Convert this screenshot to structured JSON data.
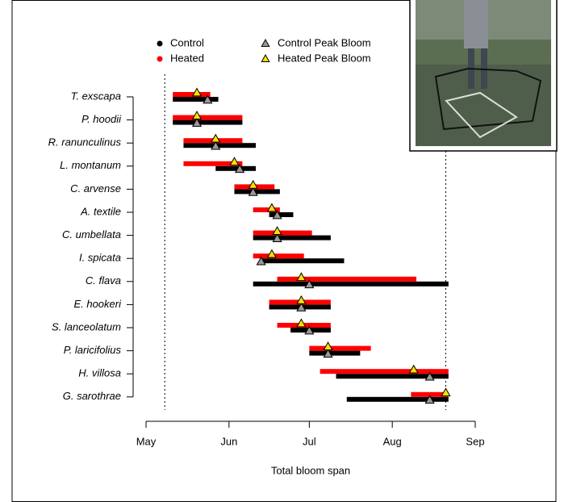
{
  "chart_data": {
    "type": "range_bar",
    "x_label": "Total bloom span",
    "categories": [
      "T. exscapa",
      "P. hoodii",
      "R. ranunculinus",
      "L. montanum",
      "C. arvense",
      "A. textile",
      "C. umbellata",
      "I. spicata",
      "C. flava",
      "E. hookeri",
      "S. lanceolatum",
      "P. laricifolius",
      "H. villosa",
      "G. sarothrae"
    ],
    "series": [
      {
        "name": "Control",
        "color": "#000000",
        "start": [
          10,
          10,
          14,
          26,
          33,
          46,
          40,
          43,
          40,
          46,
          54,
          61,
          71,
          75
        ],
        "end": [
          27,
          36,
          41,
          41,
          50,
          55,
          69,
          74,
          113,
          69,
          69,
          80,
          113,
          113
        ]
      },
      {
        "name": "Heated",
        "color": "#ff0000",
        "start": [
          10,
          10,
          14,
          14,
          33,
          40,
          40,
          40,
          49,
          46,
          49,
          61,
          65,
          99
        ],
        "end": [
          24,
          36,
          36,
          36,
          48,
          50,
          62,
          59,
          101,
          69,
          69,
          84,
          113,
          113
        ]
      }
    ],
    "peaks": [
      {
        "name": "Control Peak Bloom",
        "color": "#999999",
        "values": [
          23,
          19,
          26,
          35,
          40,
          49,
          49,
          43,
          61,
          58,
          61,
          68,
          106,
          106
        ]
      },
      {
        "name": "Heated Peak Bloom",
        "color": "#ffe000",
        "values": [
          19,
          19,
          26,
          33,
          40,
          47,
          49,
          47,
          58,
          58,
          58,
          68,
          100,
          112
        ]
      }
    ],
    "xlim": [
      0,
      123
    ],
    "xticks": [
      {
        "value": 0,
        "label": "May"
      },
      {
        "value": 31,
        "label": "Jun"
      },
      {
        "value": 61,
        "label": "Jul"
      },
      {
        "value": 92,
        "label": "Aug"
      },
      {
        "value": 123,
        "label": "Sep"
      }
    ],
    "reference_lines": [
      7,
      112
    ]
  }
}
